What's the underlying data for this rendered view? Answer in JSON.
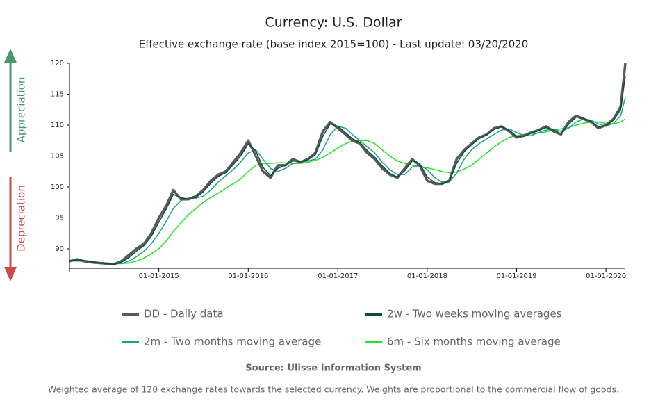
{
  "chart_data": {
    "type": "line",
    "title": "Currency: U.S. Dollar",
    "subtitle": "Effective exchange rate (base index 2015=100) - Last update: 03/20/2020",
    "annotations": [
      "Appreciation",
      "Depreciation"
    ],
    "source": "Source: Ulisse Information System",
    "note": "Weighted average of 120 exchange rates towards the selected currency. Weights are proportional to the commercial flow of goods.",
    "x": [
      "2014-01-01",
      "2014-02-01",
      "2014-03-01",
      "2014-04-01",
      "2014-05-01",
      "2014-06-01",
      "2014-07-01",
      "2014-08-01",
      "2014-09-01",
      "2014-10-01",
      "2014-11-01",
      "2014-12-01",
      "2015-01-01",
      "2015-02-01",
      "2015-03-01",
      "2015-04-01",
      "2015-05-01",
      "2015-06-01",
      "2015-07-01",
      "2015-08-01",
      "2015-09-01",
      "2015-10-01",
      "2015-11-01",
      "2015-12-01",
      "2016-01-01",
      "2016-02-01",
      "2016-03-01",
      "2016-04-01",
      "2016-05-01",
      "2016-06-01",
      "2016-07-01",
      "2016-08-01",
      "2016-09-01",
      "2016-10-01",
      "2016-11-01",
      "2016-12-01",
      "2017-01-01",
      "2017-02-01",
      "2017-03-01",
      "2017-04-01",
      "2017-05-01",
      "2017-06-01",
      "2017-07-01",
      "2017-08-01",
      "2017-09-01",
      "2017-10-01",
      "2017-11-01",
      "2017-12-01",
      "2018-01-01",
      "2018-02-01",
      "2018-03-01",
      "2018-04-01",
      "2018-05-01",
      "2018-06-01",
      "2018-07-01",
      "2018-08-01",
      "2018-09-01",
      "2018-10-01",
      "2018-11-01",
      "2018-12-01",
      "2019-01-01",
      "2019-02-01",
      "2019-03-01",
      "2019-04-01",
      "2019-05-01",
      "2019-06-01",
      "2019-07-01",
      "2019-08-01",
      "2019-09-01",
      "2019-10-01",
      "2019-11-01",
      "2019-12-01",
      "2020-01-01",
      "2020-02-01",
      "2020-03-01",
      "2020-03-20"
    ],
    "series": [
      {
        "name": "DD - Daily data",
        "color": "#5a5a5a",
        "width": 3.5,
        "values": [
          88,
          88.3,
          88,
          87.8,
          87.7,
          87.6,
          87.5,
          88,
          89,
          90,
          90.8,
          92.5,
          95,
          97,
          99.5,
          98,
          98,
          98.5,
          99.5,
          101,
          102,
          102.5,
          104,
          105.5,
          107.5,
          105,
          102.5,
          101.5,
          103.5,
          103.5,
          104.5,
          104,
          104.5,
          105.5,
          109,
          110.5,
          109.5,
          108.5,
          107.5,
          107,
          105.5,
          104.5,
          103,
          102,
          101.5,
          103,
          104.5,
          103.5,
          101,
          100.5,
          100.5,
          101,
          104.5,
          106,
          107,
          108,
          108.5,
          109.5,
          109.8,
          109,
          108,
          108.3,
          108.8,
          109.2,
          109.8,
          109,
          108.5,
          110.5,
          111.5,
          111,
          110.5,
          109.5,
          110,
          111,
          113,
          120
        ]
      },
      {
        "name": "2w - Two weeks moving averages",
        "color": "#0d4a40",
        "width": 1.5,
        "values": [
          88,
          88.2,
          88.1,
          87.9,
          87.7,
          87.6,
          87.5,
          87.8,
          88.6,
          89.6,
          90.5,
          92,
          94.3,
          96.5,
          98.8,
          98.3,
          98,
          98.3,
          99.2,
          100.6,
          101.7,
          102.3,
          103.6,
          105,
          107,
          105.8,
          103.2,
          101.8,
          103,
          103.5,
          104.2,
          104.1,
          104.4,
          105.2,
          108.2,
          110.2,
          109.8,
          108.8,
          107.8,
          107.2,
          105.9,
          104.8,
          103.4,
          102.2,
          101.6,
          102.6,
          104.2,
          103.8,
          101.6,
          100.7,
          100.5,
          100.9,
          103.8,
          105.7,
          106.8,
          107.8,
          108.4,
          109.3,
          109.7,
          109.2,
          108.2,
          108.2,
          108.7,
          109.1,
          109.6,
          109.2,
          108.6,
          110.1,
          111.3,
          111.1,
          110.6,
          109.7,
          109.9,
          110.8,
          112.5,
          118
        ]
      },
      {
        "name": "2m - Two months moving average",
        "color": "#1aa387",
        "width": 1.5,
        "values": [
          88,
          88.1,
          88.1,
          88,
          87.8,
          87.7,
          87.6,
          87.6,
          88,
          88.7,
          89.6,
          90.8,
          92.5,
          94.5,
          96.5,
          97.8,
          98.2,
          98.2,
          98.5,
          99.5,
          100.8,
          101.8,
          102.8,
          104,
          105.5,
          106,
          104.5,
          103,
          102.5,
          103,
          103.8,
          104,
          104.2,
          104.5,
          106,
          108.5,
          109.8,
          109.5,
          108.5,
          107.5,
          106.5,
          105.5,
          104,
          102.8,
          102,
          102,
          103.2,
          103.5,
          102.8,
          101.5,
          100.8,
          100.8,
          102.2,
          104.5,
          106,
          107,
          107.8,
          108.5,
          109.2,
          109.4,
          108.8,
          108.3,
          108.3,
          108.8,
          109.2,
          109.3,
          109,
          109.5,
          110.5,
          111,
          110.8,
          110.2,
          109.8,
          110.3,
          111.5,
          114.5
        ]
      },
      {
        "name": "6m - Six months moving average",
        "color": "#22e422",
        "width": 1.5,
        "values": [
          88,
          88,
          88,
          87.9,
          87.8,
          87.7,
          87.6,
          87.6,
          87.7,
          88,
          88.5,
          89.2,
          90,
          91.3,
          92.8,
          94.2,
          95.5,
          96.5,
          97.5,
          98.3,
          99,
          99.8,
          100.5,
          101.3,
          102.5,
          103.5,
          103.8,
          103.8,
          103.9,
          103.9,
          103.8,
          103.8,
          104,
          104.3,
          104.8,
          105.5,
          106.3,
          107,
          107.4,
          107.5,
          107.5,
          107,
          106,
          105,
          104.2,
          103.8,
          103.5,
          103.3,
          103.1,
          102.8,
          102.5,
          102.3,
          102.4,
          102.9,
          103.5,
          104.5,
          105.5,
          106.5,
          107.3,
          108,
          108.3,
          108.5,
          108.6,
          108.7,
          108.9,
          109.2,
          109.4,
          109.6,
          110,
          110.3,
          110.5,
          110.5,
          110.3,
          110.2,
          110.5,
          111
        ]
      }
    ],
    "xlim": [
      "2014-01-01",
      "2020-03-20"
    ],
    "xticks": [
      {
        "value": "2015-01-01",
        "label": "01-01-2015"
      },
      {
        "value": "2016-01-01",
        "label": "01-01-2016"
      },
      {
        "value": "2017-01-01",
        "label": "01-01-2017"
      },
      {
        "value": "2018-01-01",
        "label": "01-01-2018"
      },
      {
        "value": "2019-01-01",
        "label": "01-01-2019"
      },
      {
        "value": "2020-01-01",
        "label": "01-01-2020"
      }
    ],
    "ylim": [
      86.85,
      120
    ],
    "yticks": [
      90,
      95,
      100,
      105,
      110,
      115,
      120
    ],
    "grid": false
  }
}
